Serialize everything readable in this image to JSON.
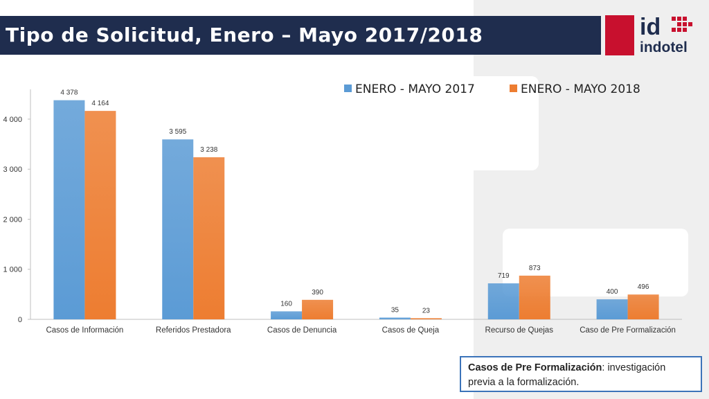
{
  "header": {
    "title": "Tipo de Solicitud, Enero – Mayo 2017/2018"
  },
  "logo": {
    "mark": "id",
    "name": "indotel"
  },
  "note": {
    "term": "Casos de Pre Formalización",
    "definition": ": investigación previa a la formalización."
  },
  "colors": {
    "title_bar": "#1f2d4e",
    "series_2017": "#5b9bd5",
    "series_2018": "#ed7d31",
    "brand_red": "#c8102e",
    "note_border": "#3b73b9"
  },
  "chart_data": {
    "type": "bar",
    "categories": [
      "Casos de Información",
      "Referidos Prestadora",
      "Casos de Denuncia",
      "Casos de Queja",
      "Recurso de Quejas",
      "Caso de Pre Formalización"
    ],
    "series": [
      {
        "name": "ENERO - MAYO 2017",
        "values": [
          4378,
          3595,
          160,
          35,
          719,
          400
        ],
        "labels": [
          "4 378",
          "3 595",
          "160",
          "35",
          "719",
          "400"
        ],
        "color": "#5b9bd5"
      },
      {
        "name": "ENERO - MAYO 2018",
        "values": [
          4164,
          3238,
          390,
          23,
          873,
          496
        ],
        "labels": [
          "4 164",
          "3 238",
          "390",
          "23",
          "873",
          "496"
        ],
        "color": "#ed7d31"
      }
    ],
    "yticks": [
      0,
      1000,
      2000,
      3000,
      4000
    ],
    "ytick_labels": [
      "0",
      "1 000",
      "2 000",
      "3 000",
      "4 000"
    ],
    "ylim": [
      0,
      4650
    ],
    "legend": "top-right",
    "grid": false
  }
}
